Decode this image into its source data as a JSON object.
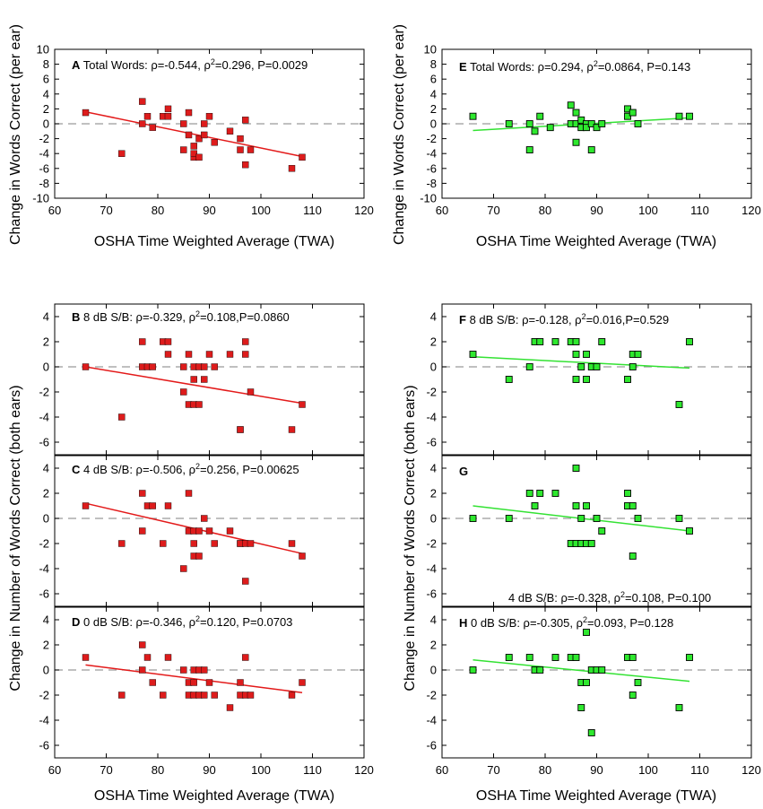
{
  "colors": {
    "red_marker": "#dd1c1c",
    "red_line": "#e31a1a",
    "green_marker": "#2ee82e",
    "green_line": "#33e233",
    "marker_edge": "#000000",
    "zero_line": "#9a9a9a"
  },
  "axis_titles": {
    "left_x": "OSHA Time Weighted Average (TWA)",
    "right_top_x": "OSHA Time Weighted Average (TWA)",
    "right_bottom_x": "OSHA Time Weighted Average (TWA)",
    "left_top_y": "Change in Words Correct (per ear)",
    "right_top_y": "Change in Words Correct (per ear)",
    "left_bottom_y": "Change in Number of Words Correct (both ears)",
    "right_bottom_y": "Change in Number of Words Correct (both ears)"
  },
  "chart_data": [
    {
      "id": "A",
      "type": "scatter",
      "letter": "A",
      "annotation": {
        "label": "Total Words: ",
        "r": "-0.544",
        "r2": "0.296",
        "p": "0.0029"
      },
      "xlim": [
        60,
        120
      ],
      "ylim": [
        -10,
        10
      ],
      "xticks": [
        60,
        70,
        80,
        90,
        100,
        110,
        120
      ],
      "yticks": [
        -10,
        -8,
        -6,
        -4,
        -2,
        0,
        2,
        4,
        6,
        8,
        10
      ],
      "color": "red",
      "x": [
        66,
        73,
        77,
        77,
        78,
        79,
        81,
        82,
        82,
        85,
        85,
        86,
        86,
        87,
        87,
        87,
        88,
        88,
        89,
        89,
        90,
        91,
        94,
        96,
        96,
        97,
        97,
        98,
        106,
        108
      ],
      "y": [
        1.5,
        -4,
        3,
        0,
        1,
        -0.5,
        1,
        2,
        1,
        -3.5,
        0,
        -1.5,
        1.5,
        -4.5,
        -4,
        -3,
        -4.5,
        -2,
        0,
        -1.5,
        1,
        -2.5,
        -1,
        -2,
        -3.5,
        0.5,
        -5.5,
        -3.5,
        -6,
        -4.5
      ],
      "fit": {
        "x": [
          66,
          108
        ],
        "y": [
          1.6,
          -4.4
        ]
      }
    },
    {
      "id": "E",
      "type": "scatter",
      "letter": "E",
      "annotation": {
        "label": "Total Words: ",
        "r": "0.294",
        "r2": "0.0864",
        "p": "0.143"
      },
      "xlim": [
        60,
        120
      ],
      "ylim": [
        -10,
        10
      ],
      "xticks": [
        60,
        70,
        80,
        90,
        100,
        110,
        120
      ],
      "yticks": [
        -10,
        -8,
        -6,
        -4,
        -2,
        0,
        2,
        4,
        6,
        8,
        10
      ],
      "color": "green",
      "x": [
        66,
        73,
        77,
        77,
        78,
        79,
        81,
        85,
        85,
        86,
        86,
        86,
        87,
        87,
        88,
        88,
        89,
        89,
        90,
        91,
        96,
        96,
        97,
        98,
        106,
        108
      ],
      "y": [
        1,
        0,
        0,
        -3.5,
        -1,
        1,
        -0.5,
        0,
        2.5,
        1.5,
        0,
        -2.5,
        -0.5,
        0.5,
        0,
        -0.5,
        -3.5,
        0,
        -0.5,
        0,
        2,
        1,
        1.5,
        0,
        1,
        1
      ],
      "fit": {
        "x": [
          66,
          108
        ],
        "y": [
          -0.9,
          0.8
        ]
      }
    },
    {
      "id": "B",
      "type": "scatter",
      "letter": "B",
      "annotation": {
        "label": "8 dB S/B: ",
        "r": "-0.329",
        "r2": "0.108",
        "p": "0.0860",
        "tight": true
      },
      "xlim": [
        60,
        120
      ],
      "ylim": [
        -7,
        5
      ],
      "xticks": [],
      "yticks": [
        -6,
        -4,
        -2,
        0,
        2,
        4
      ],
      "color": "red",
      "x": [
        66,
        73,
        77,
        77,
        78,
        79,
        81,
        82,
        82,
        85,
        85,
        86,
        86,
        87,
        87,
        87,
        88,
        88,
        89,
        89,
        90,
        91,
        94,
        96,
        96,
        97,
        97,
        98,
        106,
        108
      ],
      "y": [
        0,
        -4,
        2,
        0,
        0,
        0,
        2,
        2,
        1,
        -2,
        0,
        1,
        -3,
        -1,
        -3,
        0,
        -3,
        0,
        -1,
        0,
        1,
        0,
        1,
        -5,
        -5,
        1,
        2,
        -2,
        -5,
        -3
      ],
      "fit": {
        "x": [
          66,
          108
        ],
        "y": [
          0,
          -2.9
        ]
      }
    },
    {
      "id": "F",
      "type": "scatter",
      "letter": "F",
      "annotation": {
        "label": "8 dB S/B: ",
        "r": "-0.128",
        "r2": "0.016",
        "p": "0.529",
        "tight": true
      },
      "xlim": [
        60,
        120
      ],
      "ylim": [
        -7,
        5
      ],
      "xticks": [],
      "yticks": [
        -6,
        -4,
        -2,
        0,
        2,
        4
      ],
      "color": "green",
      "x": [
        66,
        73,
        77,
        78,
        79,
        82,
        85,
        86,
        86,
        86,
        87,
        88,
        88,
        89,
        90,
        91,
        96,
        97,
        97,
        98,
        106,
        108
      ],
      "y": [
        1,
        -1,
        0,
        2,
        2,
        2,
        2,
        -1,
        1,
        2,
        0,
        -1,
        1,
        0,
        0,
        2,
        -1,
        1,
        0,
        1,
        -3,
        2
      ],
      "fit": {
        "x": [
          66,
          108
        ],
        "y": [
          0.8,
          -0.1
        ]
      }
    },
    {
      "id": "C",
      "type": "scatter",
      "letter": "C",
      "annotation": {
        "label": "4 dB S/B: ",
        "r": "-0.506",
        "r2": "0.256",
        "p": "0.00625"
      },
      "xlim": [
        60,
        120
      ],
      "ylim": [
        -7,
        5
      ],
      "xticks": [],
      "yticks": [
        -6,
        -4,
        -2,
        0,
        2,
        4
      ],
      "color": "red",
      "x": [
        66,
        73,
        77,
        77,
        78,
        79,
        81,
        82,
        85,
        86,
        86,
        87,
        87,
        87,
        88,
        88,
        89,
        90,
        91,
        94,
        96,
        96,
        97,
        97,
        98,
        106,
        108
      ],
      "y": [
        1,
        -2,
        2,
        -1,
        1,
        1,
        -2,
        1,
        -4,
        2,
        -1,
        -3,
        -2,
        -1,
        -3,
        -1,
        0,
        -1,
        -2,
        -1,
        -2,
        -2,
        -2,
        -5,
        -2,
        -2,
        -3
      ],
      "fit": {
        "x": [
          66,
          108
        ],
        "y": [
          1.2,
          -2.8
        ]
      }
    },
    {
      "id": "G",
      "type": "scatter",
      "letter": "G",
      "annotation": null,
      "xlim": [
        60,
        120
      ],
      "ylim": [
        -7,
        5
      ],
      "xticks": [],
      "yticks": [
        -6,
        -4,
        -2,
        0,
        2,
        4
      ],
      "color": "green",
      "x": [
        66,
        73,
        77,
        78,
        79,
        82,
        85,
        86,
        86,
        86,
        87,
        87,
        88,
        88,
        89,
        90,
        91,
        96,
        96,
        97,
        97,
        98,
        106,
        108
      ],
      "y": [
        0,
        0,
        2,
        1,
        2,
        2,
        -2,
        4,
        1,
        -2,
        -2,
        0,
        1,
        -2,
        -2,
        0,
        -1,
        2,
        1,
        -3,
        1,
        0,
        0,
        -1
      ],
      "fit": {
        "x": [
          66,
          108
        ],
        "y": [
          1.0,
          -1.0
        ]
      }
    },
    {
      "id": "D",
      "type": "scatter",
      "letter": "D",
      "annotation": {
        "label": "0 dB S/B: ",
        "r": "-0.346",
        "r2": "0.120",
        "p": "0.0703"
      },
      "xlim": [
        60,
        120
      ],
      "ylim": [
        -7,
        5
      ],
      "xticks": [
        60,
        70,
        80,
        90,
        100,
        110,
        120
      ],
      "yticks": [
        -6,
        -4,
        -2,
        0,
        2,
        4
      ],
      "color": "red",
      "x": [
        66,
        73,
        77,
        77,
        78,
        79,
        81,
        82,
        85,
        86,
        86,
        87,
        87,
        87,
        88,
        88,
        89,
        89,
        90,
        91,
        94,
        96,
        96,
        97,
        97,
        98,
        106,
        108
      ],
      "y": [
        1,
        -2,
        2,
        0,
        1,
        -1,
        -2,
        1,
        0,
        -2,
        -1,
        -2,
        -1,
        0,
        -2,
        0,
        -2,
        0,
        -1,
        -2,
        -3,
        -2,
        -1,
        1,
        -2,
        -2,
        -2,
        -1
      ],
      "fit": {
        "x": [
          66,
          108
        ],
        "y": [
          0.4,
          -1.8
        ]
      }
    },
    {
      "id": "H",
      "type": "scatter",
      "letter": "H",
      "annotation": {
        "label": "0 dB S/B: ",
        "r": "-0.305",
        "r2": "0.093",
        "p": "0.128"
      },
      "extra_annotation": {
        "label": "4 dB S/B: ",
        "r": "-0.328",
        "r2": "0.108",
        "p": "0.100"
      },
      "xlim": [
        60,
        120
      ],
      "ylim": [
        -7,
        5
      ],
      "xticks": [
        60,
        70,
        80,
        90,
        100,
        110,
        120
      ],
      "yticks": [
        -6,
        -4,
        -2,
        0,
        2,
        4
      ],
      "color": "green",
      "x": [
        66,
        73,
        77,
        78,
        79,
        82,
        85,
        86,
        87,
        87,
        88,
        88,
        89,
        89,
        90,
        91,
        96,
        97,
        97,
        98,
        106,
        108
      ],
      "y": [
        0,
        1,
        1,
        0,
        0,
        1,
        1,
        1,
        -1,
        -3,
        3,
        -1,
        0,
        -5,
        0,
        0,
        1,
        -2,
        1,
        -1,
        -3,
        1
      ],
      "fit": {
        "x": [
          66,
          108
        ],
        "y": [
          0.8,
          -0.9
        ]
      }
    }
  ]
}
